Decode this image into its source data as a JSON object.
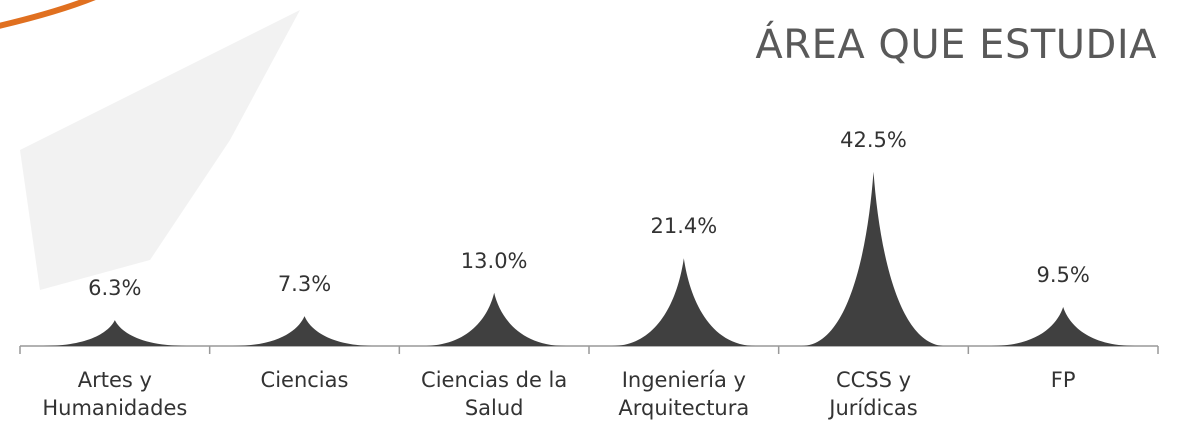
{
  "chart_data": {
    "type": "bar",
    "title": "ÁREA QUE ESTUDIA",
    "categories": [
      "Artes y\nHumanidades",
      "Ciencias",
      "Ciencias de la\nSalud",
      "Ingeniería y\nArquitectura",
      "CCSS y\nJurídicas",
      "FP"
    ],
    "values": [
      6.3,
      7.3,
      13.0,
      21.4,
      42.5,
      9.5
    ],
    "value_labels": [
      "6.3%",
      "7.3%",
      "13.0%",
      "21.4%",
      "42.5%",
      "9.5%"
    ],
    "color": "#404040"
  }
}
